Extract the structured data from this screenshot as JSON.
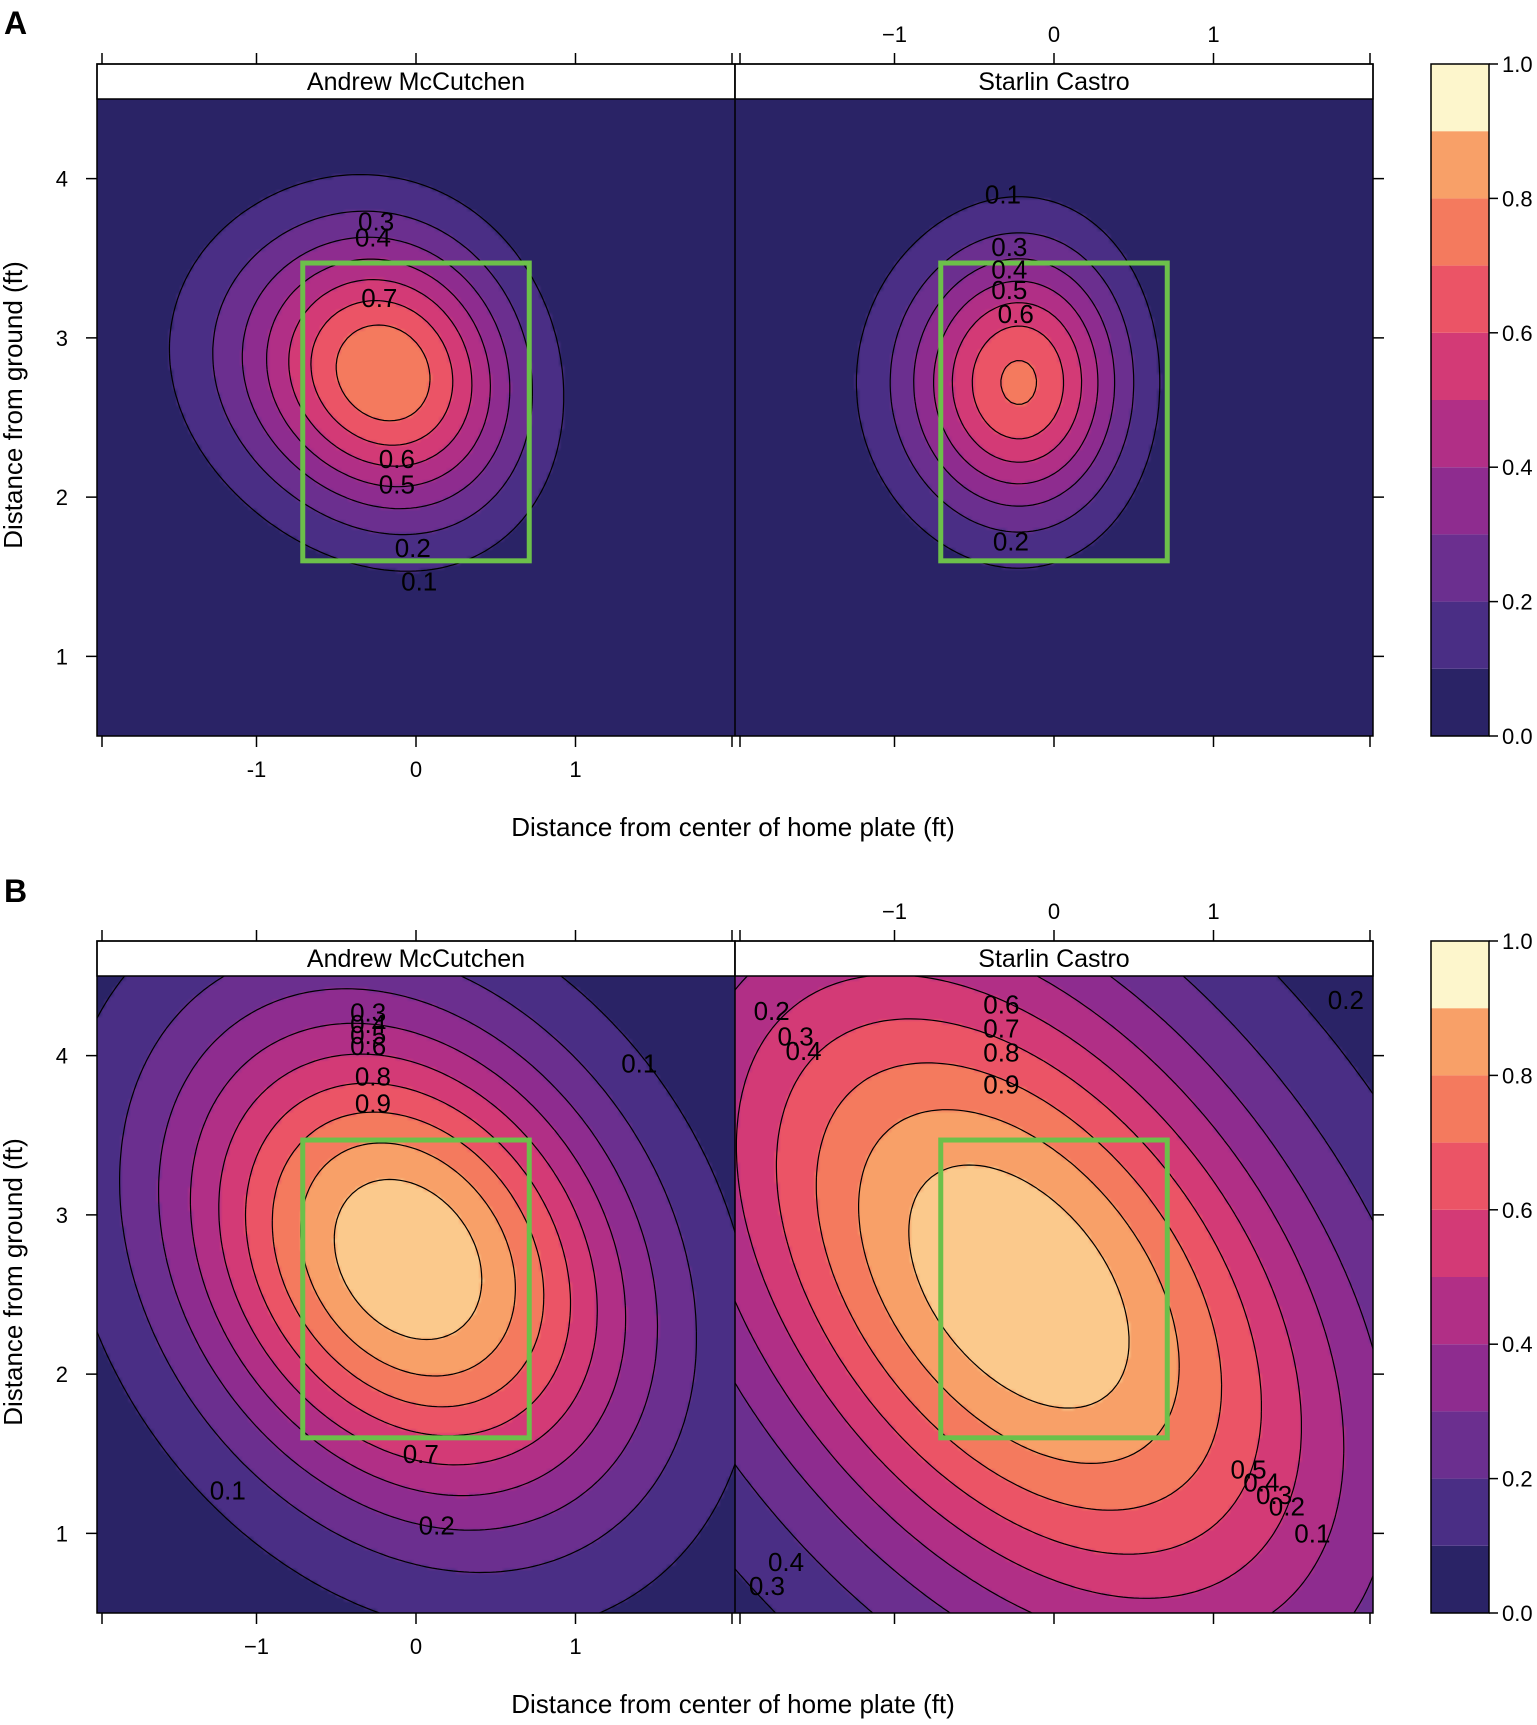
{
  "panel_letters": [
    "A",
    "B"
  ],
  "strike_zone_color": "#6cc04a",
  "colorbar": {
    "colors": [
      "#2a2366",
      "#4a2e85",
      "#6b2f8f",
      "#8e2c8f",
      "#b12f86",
      "#d33a76",
      "#eb5466",
      "#f47a5e",
      "#f8a068",
      "#fbc98c",
      "#fdf6cc"
    ],
    "tick_labels": [
      "1.0",
      "0.8",
      "0.6",
      "0.4",
      "0.2",
      "0.0"
    ],
    "ticks": [
      1.0,
      0.8,
      0.6,
      0.4,
      0.2,
      0.0
    ]
  },
  "chart_data": [
    {
      "type": "contour",
      "panel": "A",
      "xlabel": "Distance from center of home plate (ft)",
      "ylabel": "Distance from ground (ft)",
      "xlim": [
        -2.0,
        2.0
      ],
      "ylim": [
        0.5,
        4.5
      ],
      "x_tick_values": [
        -1,
        0,
        1
      ],
      "x_tick_labels": [
        "-1",
        "0",
        "1"
      ],
      "top_tick_labels": [
        "−1",
        "0",
        "1"
      ],
      "y_tick_values": [
        1,
        2,
        3,
        4
      ],
      "y_tick_labels": [
        "1",
        "2",
        "3",
        "4"
      ],
      "zlim": [
        0,
        1
      ],
      "contour_levels": [
        0.1,
        0.2,
        0.3,
        0.4,
        0.5,
        0.6,
        0.7,
        0.8,
        0.9
      ],
      "strike_zone": {
        "x": [
          -0.71,
          0.71
        ],
        "y": [
          1.6,
          3.47
        ]
      },
      "facets": [
        {
          "name": "Andrew McCutchen",
          "peak": 0.79,
          "cx": -0.2,
          "cy": 2.78,
          "sx": 0.84,
          "sy": 0.86,
          "rho": -0.12,
          "skew": 0.06,
          "contour_labels": [
            {
              "text": "0.3",
              "x": -0.25,
              "y": 3.73
            },
            {
              "text": "0.4",
              "x": -0.27,
              "y": 3.63
            },
            {
              "text": "0.7",
              "x": -0.23,
              "y": 3.25
            },
            {
              "text": "0.6",
              "x": -0.12,
              "y": 2.24
            },
            {
              "text": "0.5",
              "x": -0.12,
              "y": 2.08
            },
            {
              "text": "0.2",
              "x": -0.02,
              "y": 1.68
            },
            {
              "text": "0.1",
              "x": 0.02,
              "y": 1.47
            }
          ]
        },
        {
          "name": "Starlin Castro",
          "peak": 0.72,
          "cx": -0.22,
          "cy": 2.72,
          "sx": 0.67,
          "sy": 0.83,
          "rho": 0.0,
          "skew": 0.05,
          "contour_labels": [
            {
              "text": "0.1",
              "x": -0.32,
              "y": 3.9
            },
            {
              "text": "0.3",
              "x": -0.28,
              "y": 3.57
            },
            {
              "text": "0.4",
              "x": -0.28,
              "y": 3.43
            },
            {
              "text": "0.5",
              "x": -0.28,
              "y": 3.3
            },
            {
              "text": "0.6",
              "x": -0.24,
              "y": 3.15
            },
            {
              "text": "0.2",
              "x": -0.27,
              "y": 1.72
            }
          ]
        }
      ]
    },
    {
      "type": "contour",
      "panel": "B",
      "xlabel": "Distance from center of home plate (ft)",
      "ylabel": "Distance from ground (ft)",
      "xlim": [
        -2.0,
        2.0
      ],
      "ylim": [
        0.5,
        4.5
      ],
      "x_tick_values": [
        -1,
        0,
        1
      ],
      "x_tick_labels": [
        "−1",
        "0",
        "1"
      ],
      "top_tick_labels": [
        "−1",
        "0",
        "1"
      ],
      "y_tick_values": [
        1,
        2,
        3,
        4
      ],
      "y_tick_labels": [
        "1",
        "2",
        "3",
        "4"
      ],
      "zlim": [
        0,
        1
      ],
      "contour_levels": [
        0.1,
        0.2,
        0.3,
        0.4,
        0.5,
        0.6,
        0.7,
        0.8,
        0.9
      ],
      "strike_zone": {
        "x": [
          -0.71,
          0.71
        ],
        "y": [
          1.6,
          3.47
        ]
      },
      "facets": [
        {
          "name": "Andrew McCutchen",
          "peak": 1.0,
          "cx": -0.05,
          "cy": 2.72,
          "sx": 1.38,
          "sy": 1.5,
          "rho": -0.25,
          "skew": 0.0,
          "contour_labels": [
            {
              "text": "0.3",
              "x": -0.3,
              "y": 4.27
            },
            {
              "text": "0.4",
              "x": -0.3,
              "y": 4.2
            },
            {
              "text": "0.5",
              "x": -0.3,
              "y": 4.13
            },
            {
              "text": "0.6",
              "x": -0.3,
              "y": 4.06
            },
            {
              "text": "0.8",
              "x": -0.27,
              "y": 3.87
            },
            {
              "text": "0.9",
              "x": -0.27,
              "y": 3.7
            },
            {
              "text": "0.1",
              "x": 1.4,
              "y": 3.95
            },
            {
              "text": "0.7",
              "x": 0.03,
              "y": 1.5
            },
            {
              "text": "0.1",
              "x": -1.18,
              "y": 1.27
            },
            {
              "text": "0.2",
              "x": 0.13,
              "y": 1.05
            }
          ]
        },
        {
          "name": "Starlin Castro",
          "peak": 1.0,
          "cx": -0.22,
          "cy": 2.55,
          "sx": 1.9,
          "sy": 2.1,
          "rho": -0.45,
          "skew": 0.0,
          "contour_labels": [
            {
              "text": "0.6",
              "x": -0.33,
              "y": 4.32
            },
            {
              "text": "0.7",
              "x": -0.33,
              "y": 4.17
            },
            {
              "text": "0.8",
              "x": -0.33,
              "y": 4.02
            },
            {
              "text": "0.9",
              "x": -0.33,
              "y": 3.82
            },
            {
              "text": "0.2",
              "x": -1.77,
              "y": 4.28
            },
            {
              "text": "0.3",
              "x": -1.62,
              "y": 4.12
            },
            {
              "text": "0.4",
              "x": -1.57,
              "y": 4.03
            },
            {
              "text": "0.2",
              "x": 1.83,
              "y": 4.35
            },
            {
              "text": "0.5",
              "x": 1.22,
              "y": 1.4
            },
            {
              "text": "0.4",
              "x": 1.3,
              "y": 1.32
            },
            {
              "text": "0.3",
              "x": 1.38,
              "y": 1.24
            },
            {
              "text": "0.2",
              "x": 1.46,
              "y": 1.17
            },
            {
              "text": "0.1",
              "x": 1.62,
              "y": 1.0
            },
            {
              "text": "0.4",
              "x": -1.68,
              "y": 0.82
            },
            {
              "text": "0.3",
              "x": -1.8,
              "y": 0.67
            }
          ]
        }
      ]
    }
  ]
}
